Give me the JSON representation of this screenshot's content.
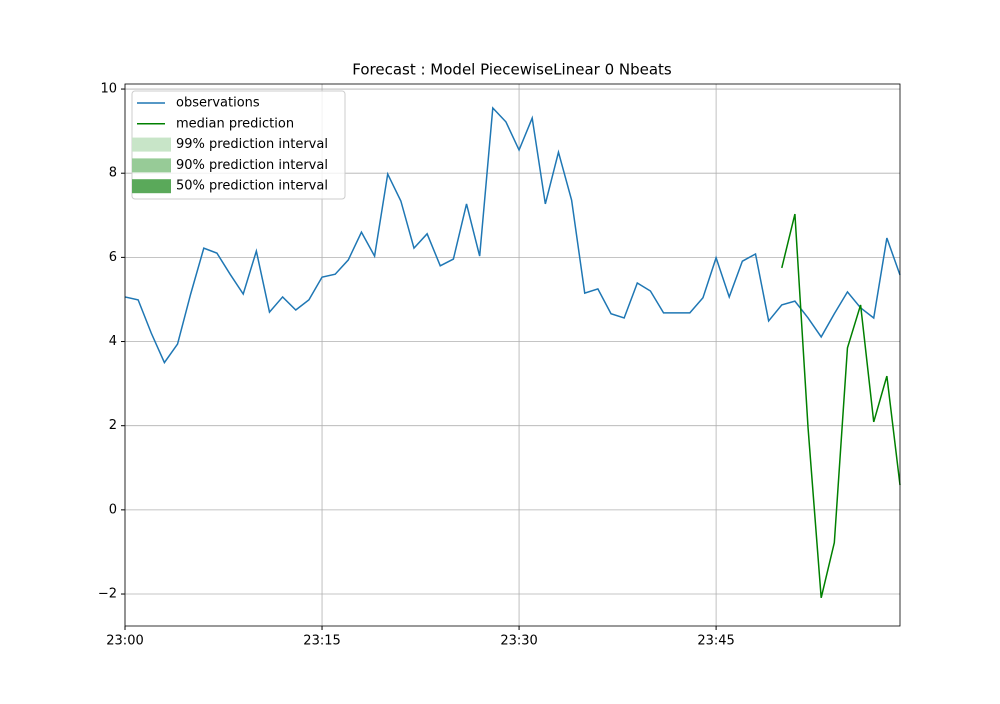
{
  "chart_data": {
    "type": "line",
    "title": "Forecast : Model PiecewiseLinear 0 Nbeats",
    "x": [
      "23:00",
      "23:01",
      "23:02",
      "23:03",
      "23:04",
      "23:05",
      "23:06",
      "23:07",
      "23:08",
      "23:09",
      "23:10",
      "23:11",
      "23:12",
      "23:13",
      "23:14",
      "23:15",
      "23:16",
      "23:17",
      "23:18",
      "23:19",
      "23:20",
      "23:21",
      "23:22",
      "23:23",
      "23:24",
      "23:25",
      "23:26",
      "23:27",
      "23:28",
      "23:29",
      "23:30",
      "23:31",
      "23:32",
      "23:33",
      "23:34",
      "23:35",
      "23:36",
      "23:37",
      "23:38",
      "23:39",
      "23:40",
      "23:41",
      "23:42",
      "23:43",
      "23:44",
      "23:45",
      "23:46",
      "23:47",
      "23:48",
      "23:49",
      "23:50",
      "23:51",
      "23:52",
      "23:53",
      "23:54",
      "23:55",
      "23:56",
      "23:57",
      "23:58",
      "23:59"
    ],
    "series": [
      {
        "name": "observations",
        "color": "#1f77b4",
        "values": [
          5.06,
          4.99,
          4.2,
          3.5,
          3.94,
          5.13,
          6.22,
          6.1,
          5.6,
          5.13,
          6.15,
          4.7,
          5.06,
          4.75,
          4.99,
          5.53,
          5.6,
          5.94,
          6.6,
          6.03,
          7.98,
          7.34,
          6.22,
          6.56,
          5.8,
          5.96,
          7.27,
          6.03,
          9.55,
          9.22,
          8.55,
          9.31,
          7.27,
          8.5,
          7.36,
          5.15,
          5.25,
          4.66,
          4.56,
          5.39,
          5.2,
          4.68,
          4.68,
          4.68,
          5.04,
          5.99,
          5.06,
          5.91,
          6.08,
          4.49,
          4.87,
          4.96,
          4.56,
          4.11,
          4.66,
          5.18,
          4.8,
          4.56,
          6.46,
          5.58
        ]
      },
      {
        "name": "median prediction",
        "color": "#008000",
        "values": [
          null,
          null,
          null,
          null,
          null,
          null,
          null,
          null,
          null,
          null,
          null,
          null,
          null,
          null,
          null,
          null,
          null,
          null,
          null,
          null,
          null,
          null,
          null,
          null,
          null,
          null,
          null,
          null,
          null,
          null,
          null,
          null,
          null,
          null,
          null,
          null,
          null,
          null,
          null,
          null,
          null,
          null,
          null,
          null,
          null,
          null,
          null,
          null,
          null,
          null,
          5.75,
          7.03,
          1.95,
          -2.09,
          -0.78,
          3.85,
          4.87,
          2.09,
          3.18,
          0.59
        ]
      }
    ],
    "intervals": [
      {
        "name": "99% prediction interval",
        "color": "#c8e5c8"
      },
      {
        "name": "90% prediction interval",
        "color": "#97cb97"
      },
      {
        "name": "50% prediction interval",
        "color": "#5aa95a"
      }
    ],
    "xlim": [
      "23:00",
      "23:59"
    ],
    "xticks": [
      "23:00",
      "23:15",
      "23:30",
      "23:45"
    ],
    "ylim": [
      -2.76,
      10.12
    ],
    "yticks": [
      {
        "value": -2,
        "label": "−2"
      },
      0,
      2,
      4,
      6,
      8,
      10
    ],
    "grid": true,
    "legend": "upper left"
  }
}
